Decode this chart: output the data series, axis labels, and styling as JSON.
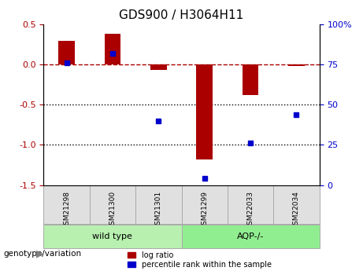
{
  "title": "GDS900 / H3064H11",
  "samples": [
    "GSM21298",
    "GSM21300",
    "GSM21301",
    "GSM21299",
    "GSM22033",
    "GSM22034"
  ],
  "log_ratio": [
    0.3,
    0.38,
    -0.07,
    -1.18,
    -0.38,
    -0.02
  ],
  "percentile_rank": [
    76,
    82,
    40,
    4,
    26,
    44
  ],
  "groups": [
    {
      "label": "wild type",
      "indices": [
        0,
        1,
        2
      ],
      "color": "#b8f0b0"
    },
    {
      "label": "AQP-/-",
      "indices": [
        3,
        4,
        5
      ],
      "color": "#90ee90"
    }
  ],
  "bar_color": "#aa0000",
  "dot_color": "#0000cc",
  "ylim_left": [
    -1.5,
    0.5
  ],
  "ylim_right": [
    0,
    100
  ],
  "hline_y": 0,
  "dotted_lines": [
    -0.5,
    -1.0
  ],
  "right_ticks": [
    0,
    25,
    50,
    75,
    100
  ],
  "right_tick_labels": [
    "0",
    "25",
    "50",
    "75",
    "100%"
  ],
  "left_ticks": [
    -1.5,
    -1.0,
    -0.5,
    0.0,
    0.5
  ],
  "background_color": "#ffffff",
  "plot_bg": "#ffffff",
  "legend_log_ratio": "log ratio",
  "legend_percentile": "percentile rank within the sample",
  "genotype_label": "genotype/variation"
}
